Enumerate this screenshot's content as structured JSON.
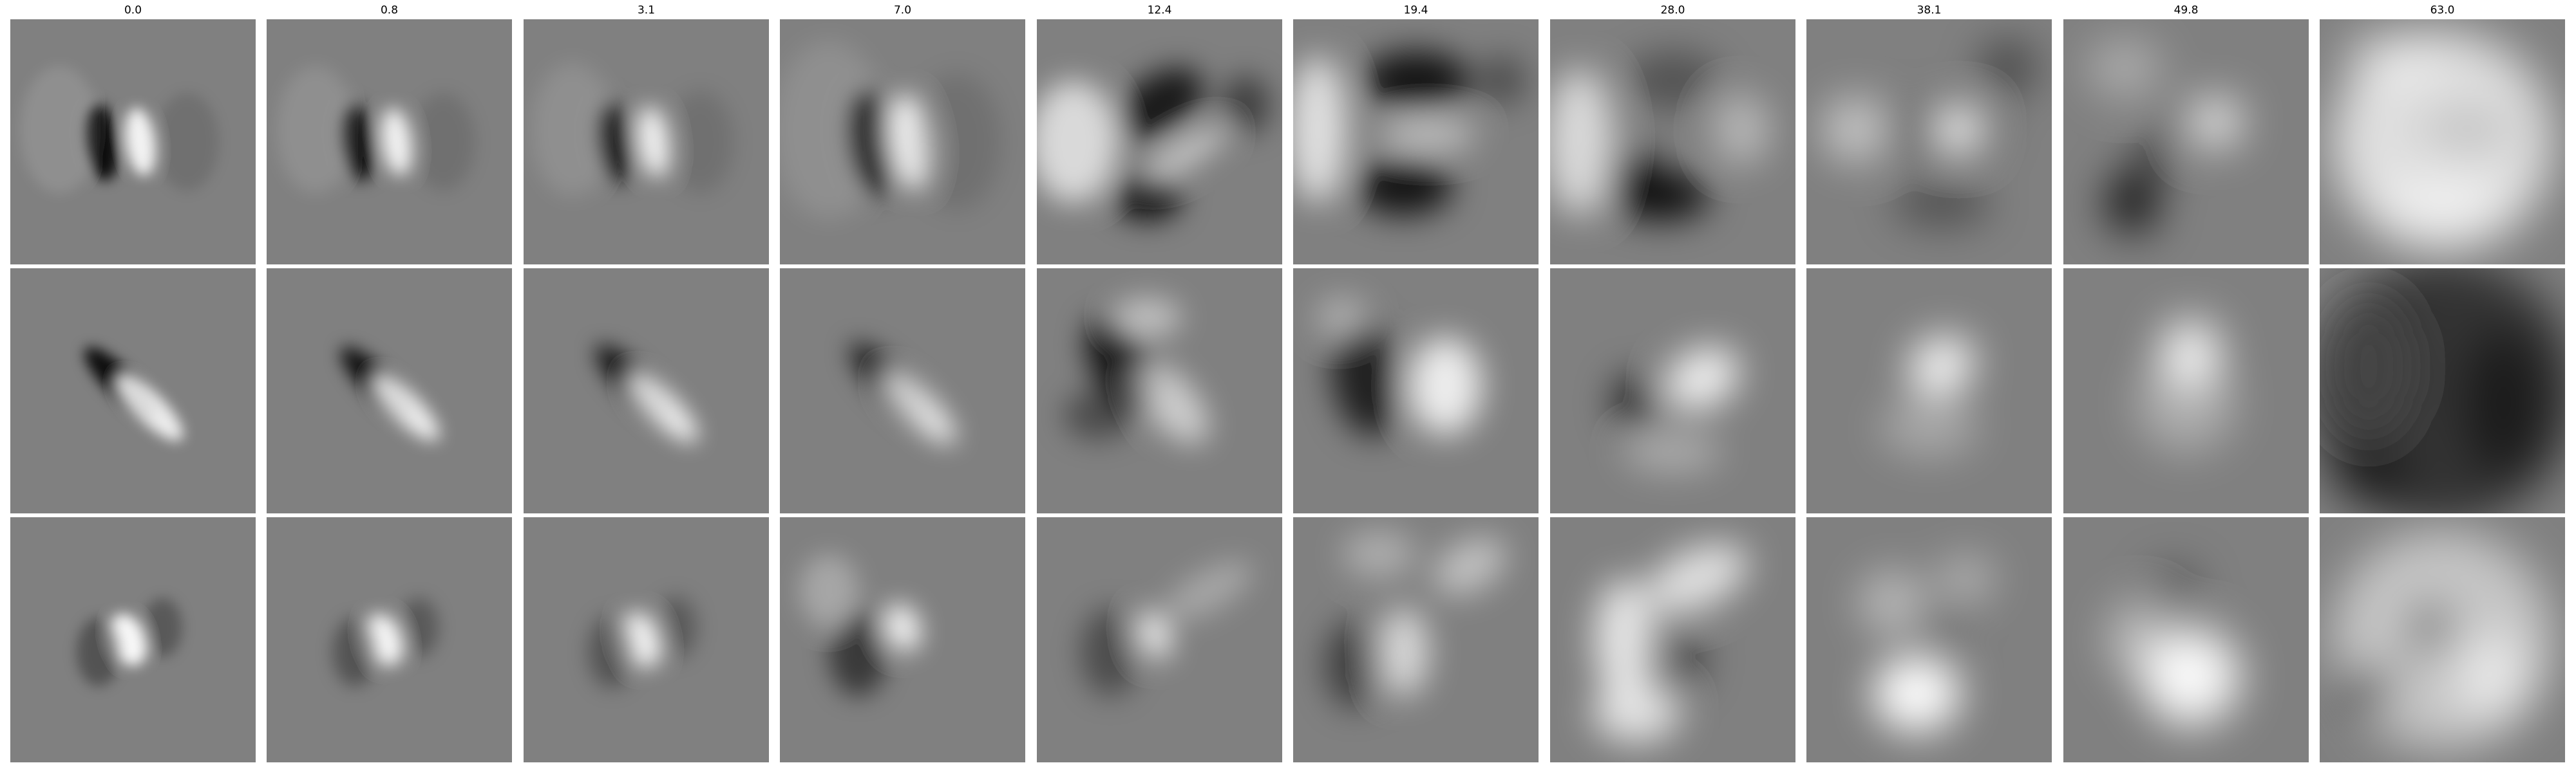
{
  "columns": [
    "0.0",
    "0.8",
    "3.1",
    "7.0",
    "12.4",
    "19.4",
    "28.0",
    "38.1",
    "49.8",
    "63.0"
  ],
  "rows": [
    {
      "filter": "row-1"
    },
    {
      "filter": "row-2"
    },
    {
      "filter": "row-3"
    }
  ],
  "colors": {
    "background_gray": "#808080",
    "white": "#ffffff",
    "black": "#000000"
  }
}
